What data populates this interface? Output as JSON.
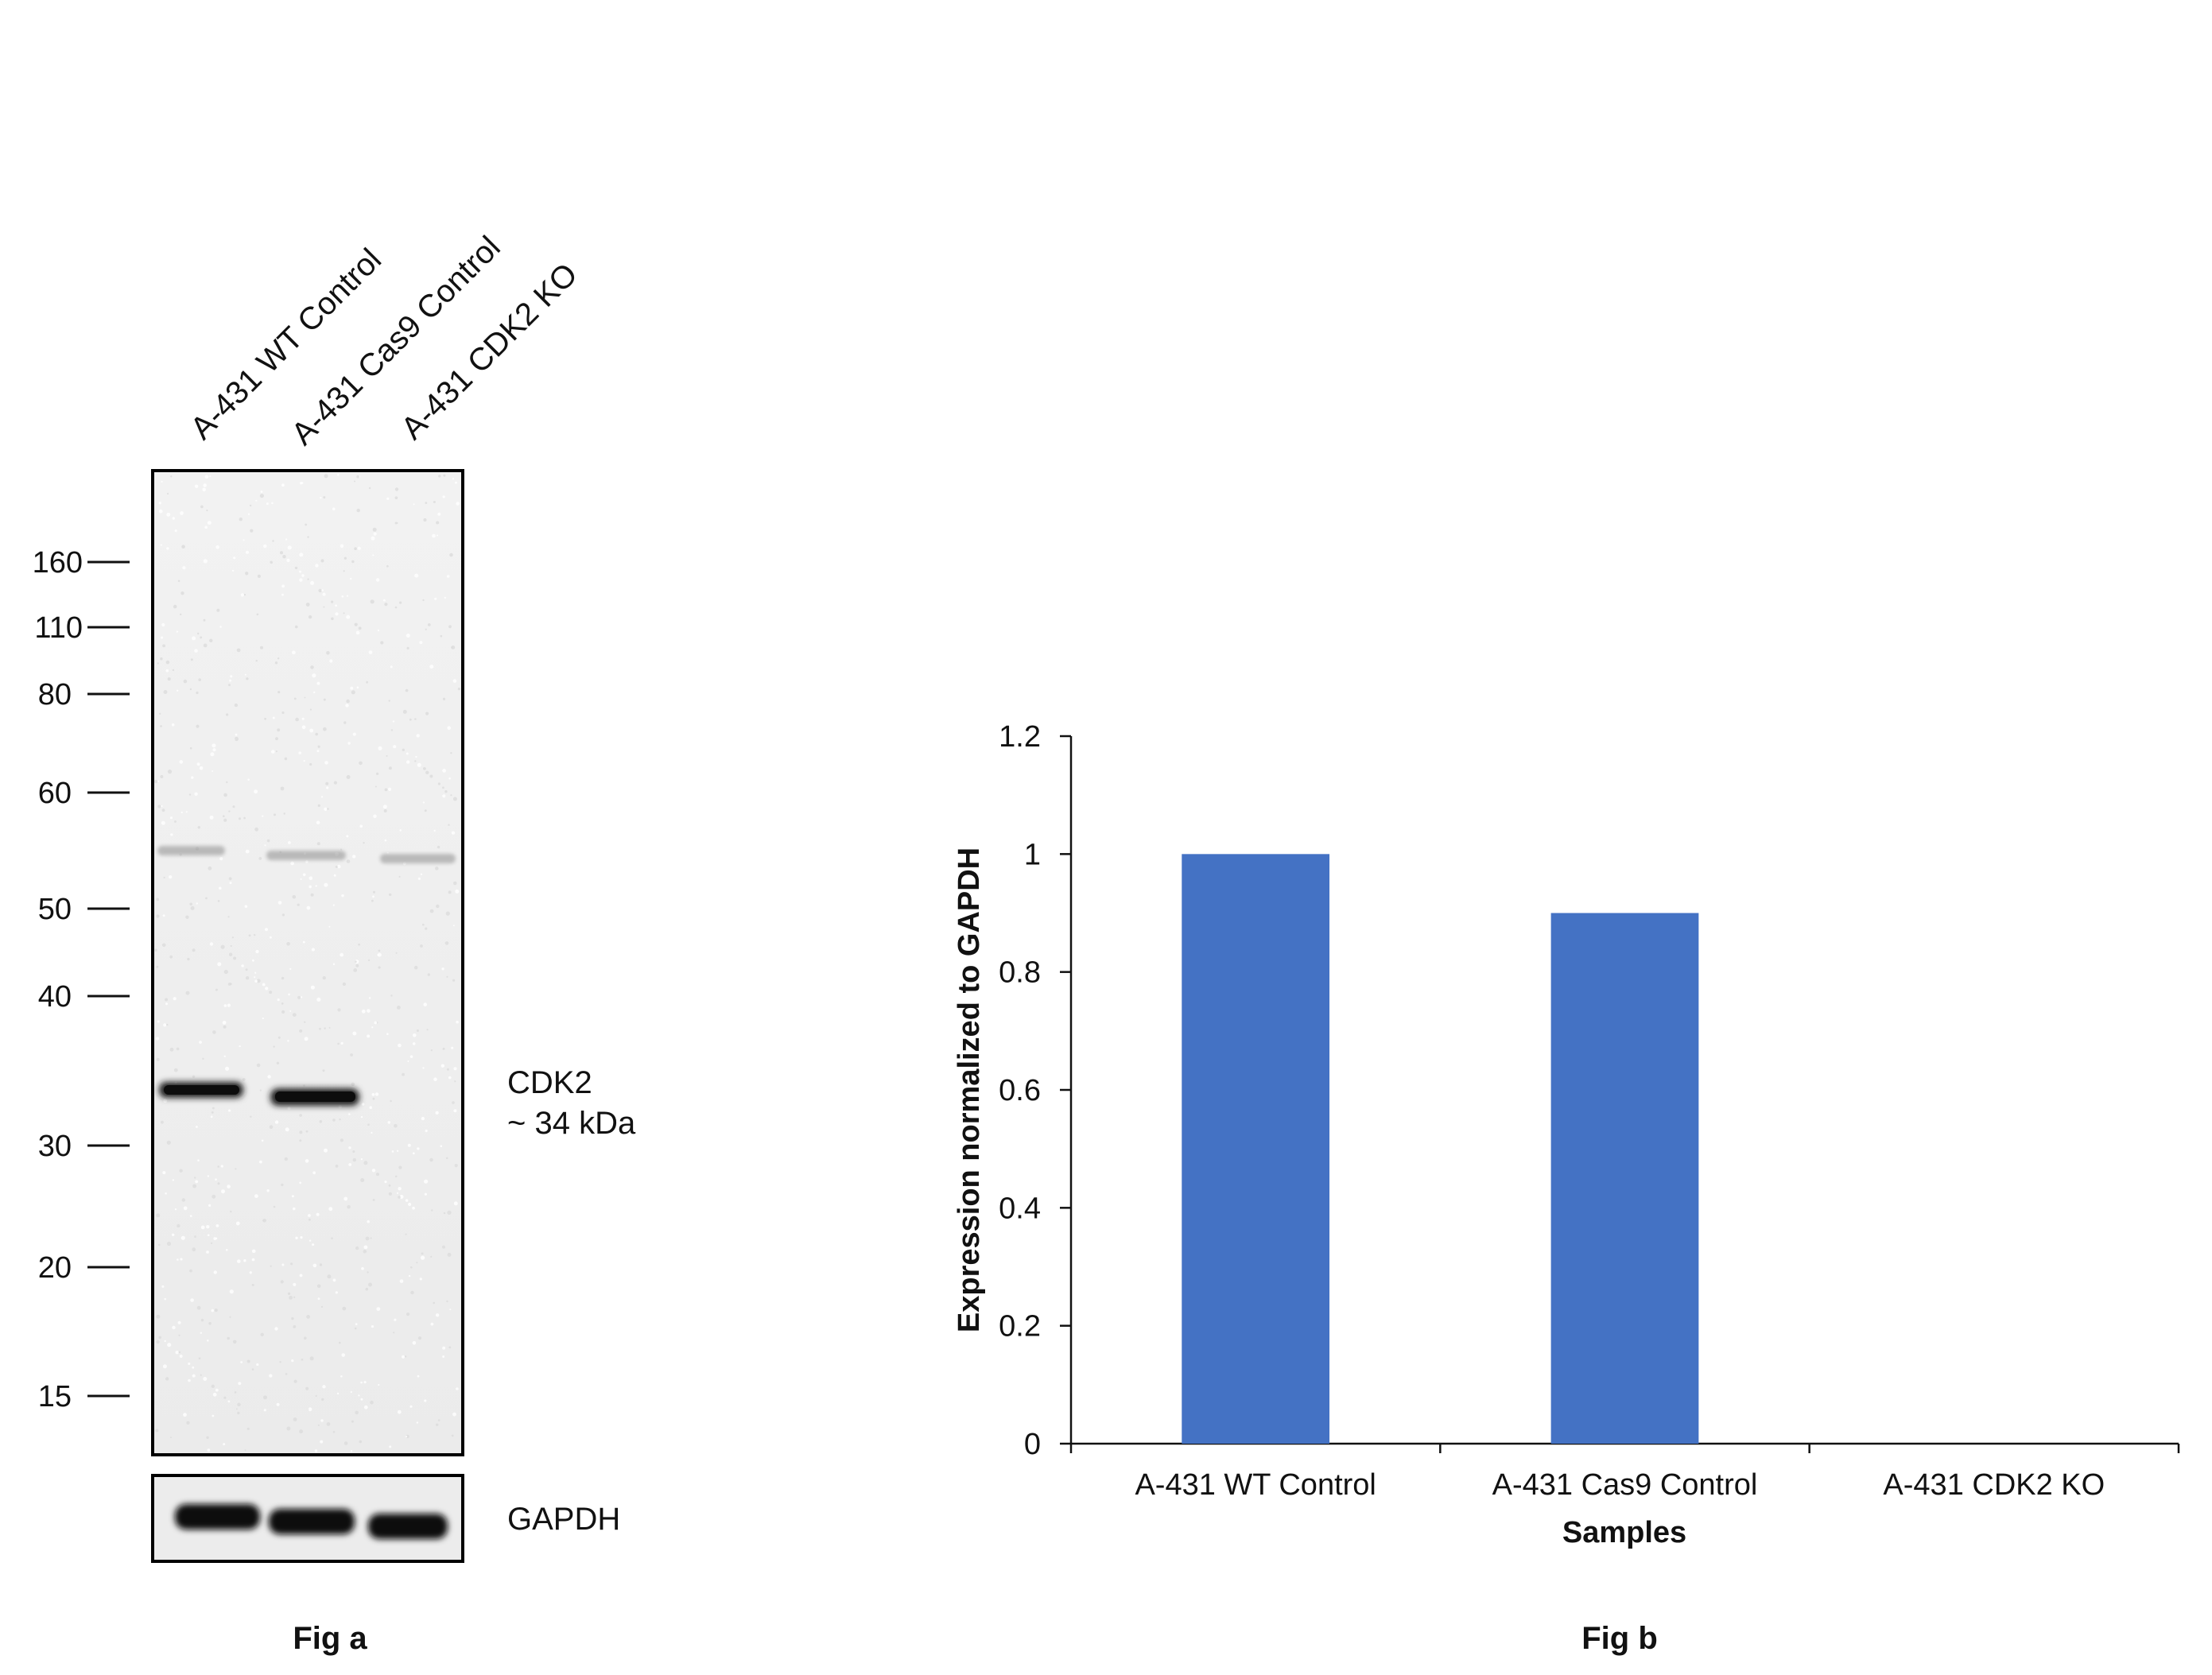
{
  "fig_a": {
    "lane_labels": [
      "A-431 WT Control",
      "A-431 Cas9 Control",
      "A-431 CDK2 KO"
    ],
    "mw_markers": [
      "160",
      "110",
      "80",
      "60",
      "50",
      "40",
      "30",
      "20",
      "15"
    ],
    "target_label": "CDK2",
    "target_size": "~ 34 kDa",
    "loading_control_label": "GAPDH",
    "caption": "Fig a"
  },
  "fig_b": {
    "caption": "Fig b"
  },
  "chart_data": {
    "type": "bar",
    "categories": [
      "A-431 WT Control",
      "A-431 Cas9 Control",
      "A-431 CDK2 KO"
    ],
    "values": [
      1.0,
      0.9,
      0.0
    ],
    "xlabel": "Samples",
    "ylabel": "Expression normalized to GAPDH",
    "ylim": [
      0,
      1.2
    ],
    "yticks": [
      "0",
      "0.2",
      "0.4",
      "0.6",
      "0.8",
      "1",
      "1.2"
    ],
    "grid": false,
    "bar_color": "#4472C4"
  }
}
